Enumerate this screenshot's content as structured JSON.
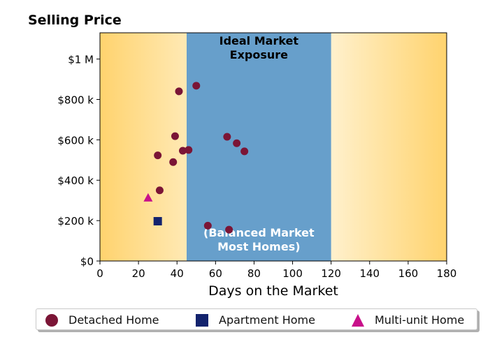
{
  "chart_data": {
    "type": "scatter",
    "title": "Selling Price",
    "xlabel": "Days on the Market",
    "ylabel": "",
    "xlim": [
      0,
      180
    ],
    "ylim": [
      0,
      1130000
    ],
    "xticks": [
      0,
      20,
      40,
      60,
      80,
      100,
      120,
      140,
      160,
      180
    ],
    "xtick_labels": [
      "0",
      "20",
      "40",
      "60",
      "80",
      "100",
      "120",
      "140",
      "160",
      "180"
    ],
    "yticks": [
      0,
      200000,
      400000,
      600000,
      800000,
      1000000
    ],
    "ytick_labels": [
      "$0",
      "$200 k",
      "$400 k",
      "$600 k",
      "$800 k",
      "$1 M"
    ],
    "regions": [
      {
        "label": "Ideal Market Exposure",
        "x_start": 45,
        "x_end": 120,
        "color": "#679fcb"
      }
    ],
    "annotations": [
      {
        "text": "(Balanced Market Most Homes)",
        "color": "#ffffff"
      }
    ],
    "background_gradient": {
      "edge_color": "#ffd36e",
      "center_color": "#ffffff"
    },
    "series": [
      {
        "name": "Detached Home",
        "marker": "circle",
        "color": "#7b1536",
        "points": [
          {
            "x": 30,
            "y": 523000
          },
          {
            "x": 31,
            "y": 350000
          },
          {
            "x": 38,
            "y": 490000
          },
          {
            "x": 39,
            "y": 618000
          },
          {
            "x": 41,
            "y": 840000
          },
          {
            "x": 43,
            "y": 546000
          },
          {
            "x": 46,
            "y": 550000
          },
          {
            "x": 50,
            "y": 868000
          },
          {
            "x": 56,
            "y": 175000
          },
          {
            "x": 67,
            "y": 155000
          },
          {
            "x": 66,
            "y": 615000
          },
          {
            "x": 71,
            "y": 583000
          },
          {
            "x": 75,
            "y": 543000
          }
        ]
      },
      {
        "name": "Apartment Home",
        "marker": "square",
        "color": "#13236e",
        "points": [
          {
            "x": 30,
            "y": 197000
          }
        ]
      },
      {
        "name": "Multi-unit Home",
        "marker": "triangle",
        "color": "#c8108a",
        "points": [
          {
            "x": 25,
            "y": 312000
          }
        ]
      }
    ],
    "legend_position": "bottom"
  }
}
